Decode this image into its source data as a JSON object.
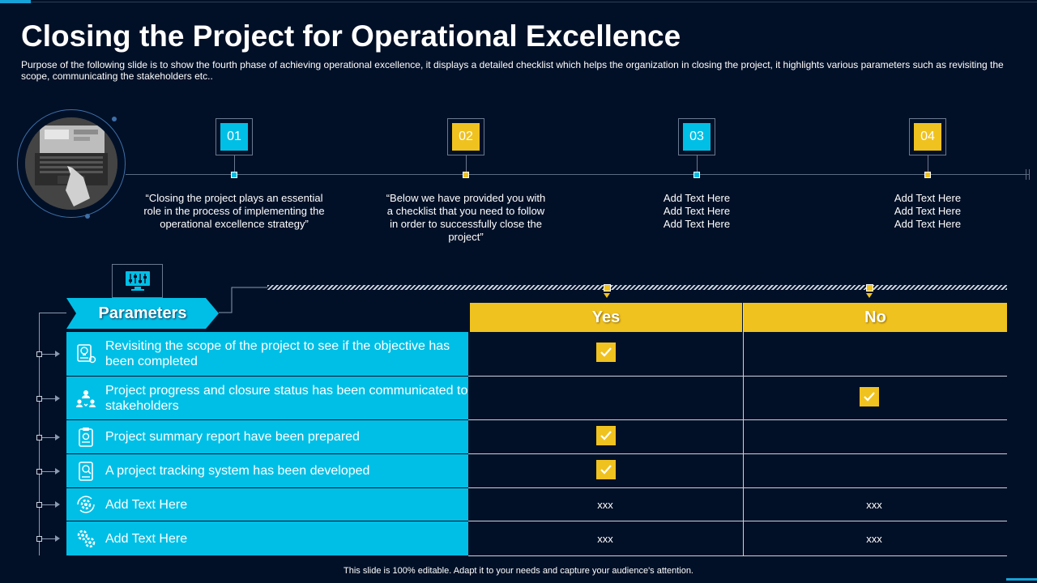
{
  "header": {
    "title": "Closing the Project for Operational Excellence",
    "subtitle": "Purpose of the following slide is to show the fourth phase of achieving operational excellence, it displays a detailed checklist which helps the organization in closing the project, it highlights various parameters such as revisiting the scope, communicating the stakeholders etc.."
  },
  "timeline": {
    "steps": [
      {
        "number": "01",
        "color": "#00bfe6",
        "text": "“Closing the project plays an essential role in the process of implementing the operational excellence strategy”"
      },
      {
        "number": "02",
        "color": "#f0c21f",
        "text": "“Below we have provided you with a checklist that you need to follow in order to successfully close the project”"
      },
      {
        "number": "03",
        "color": "#00bfe6",
        "text": "Add Text Here\nAdd Text Here\nAdd Text Here"
      },
      {
        "number": "04",
        "color": "#f0c21f",
        "text": "Add Text Here\nAdd Text Here\nAdd Text Here"
      }
    ]
  },
  "table": {
    "param_header": "Parameters",
    "yes_header": "Yes",
    "no_header": "No",
    "rows": [
      {
        "icon": "idea-document-icon",
        "label": "Revisiting the scope of the project to see if the objective has been completed",
        "yes": "check",
        "no": ""
      },
      {
        "icon": "stakeholders-icon",
        "label": "Project progress and closure status has been communicated to stakeholders",
        "yes": "",
        "no": "check"
      },
      {
        "icon": "report-icon",
        "label": "Project summary  report have been prepared",
        "yes": "check",
        "no": ""
      },
      {
        "icon": "tracking-icon",
        "label": "A project tracking system has been developed",
        "yes": "check",
        "no": ""
      },
      {
        "icon": "gear-cycle-icon",
        "label": "Add Text Here",
        "yes": "xxx",
        "no": "xxx"
      },
      {
        "icon": "gears-icon",
        "label": "Add Text Here",
        "yes": "xxx",
        "no": "xxx"
      }
    ]
  },
  "colors": {
    "background": "#021027",
    "cyan": "#00bfe6",
    "yellow": "#f0c21f"
  },
  "footer": {
    "text": "This slide is 100% editable.  Adapt it to your needs and capture your audience's attention."
  }
}
